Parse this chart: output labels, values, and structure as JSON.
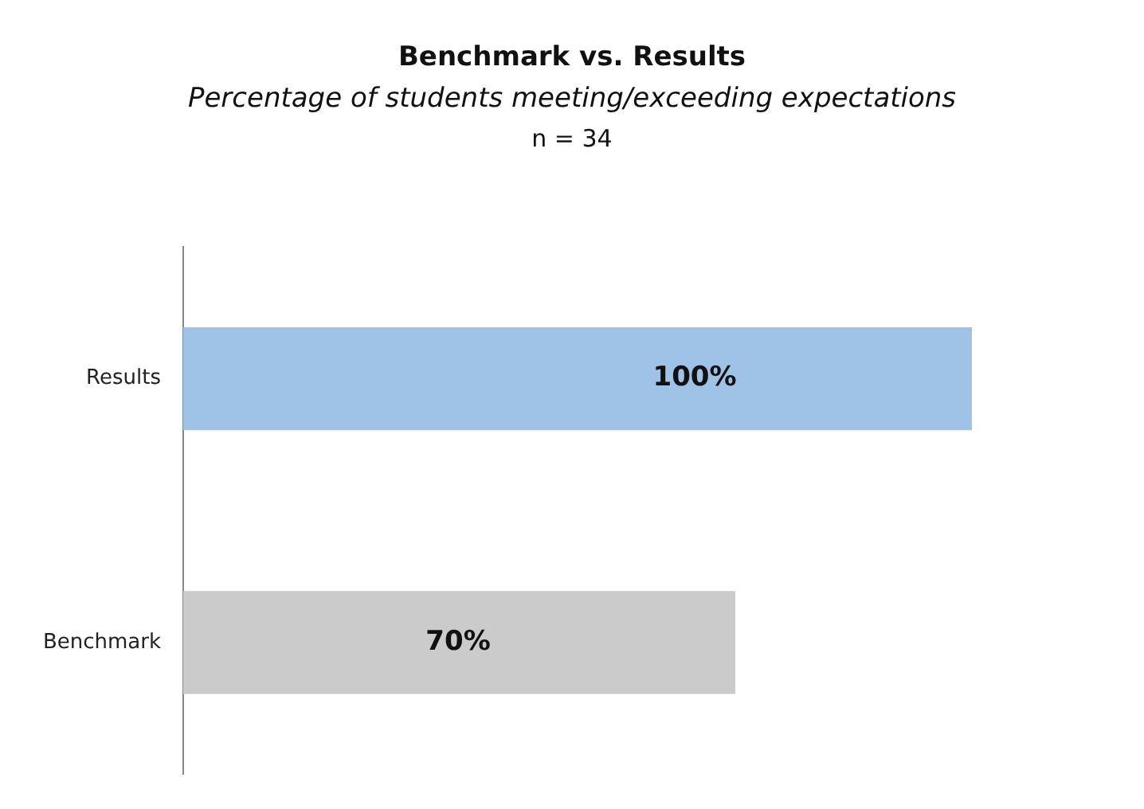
{
  "chart_data": {
    "type": "bar",
    "orientation": "horizontal",
    "title": "Benchmark vs. Results",
    "subtitle": "Percentage of students meeting/exceeding expectations",
    "annotations": [
      "n = 34"
    ],
    "categories": [
      "Results",
      "Benchmark"
    ],
    "values": [
      100,
      70
    ],
    "colors": [
      "#9fc2e7",
      "#cbcbcb"
    ],
    "value_labels": [
      "100%",
      "70%"
    ],
    "legend": false
  }
}
